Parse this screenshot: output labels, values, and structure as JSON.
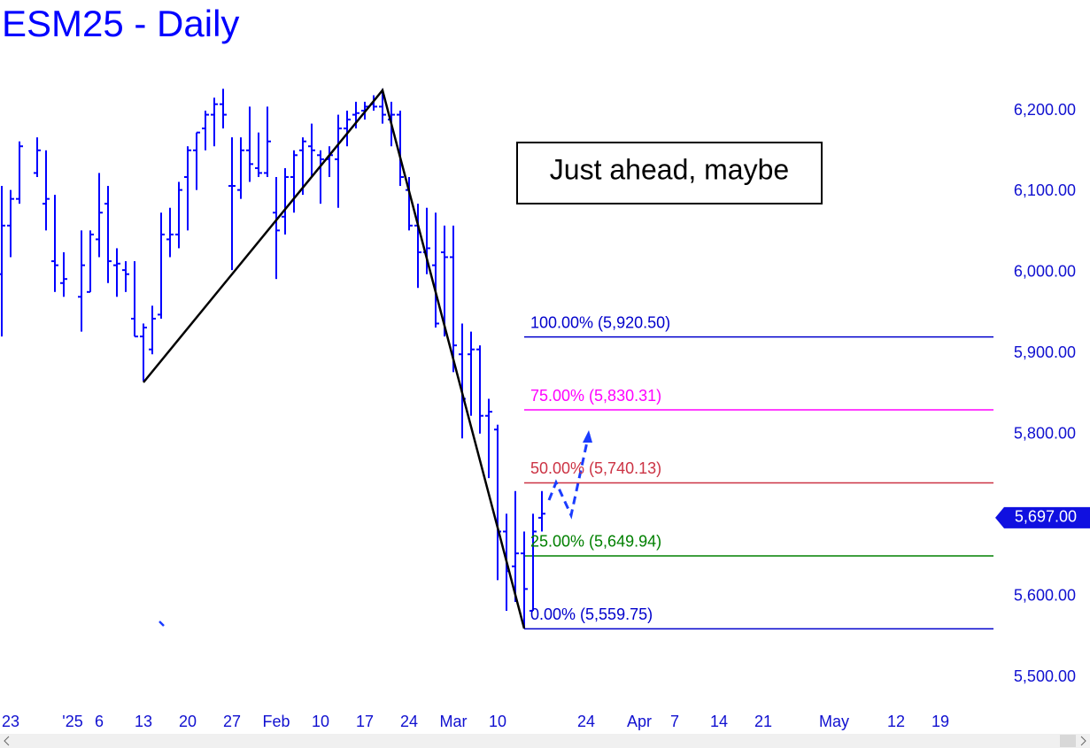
{
  "chart_data": {
    "type": "ohlc",
    "title": "ESM25 - Daily",
    "color": "#0000ff",
    "x": [
      0,
      1,
      2,
      4,
      5,
      6,
      7,
      9,
      10,
      11,
      12,
      13,
      14,
      15,
      16,
      17,
      18,
      19,
      20,
      21,
      22,
      23,
      24,
      25,
      26,
      27,
      28,
      29,
      30,
      31,
      32,
      33,
      34,
      35,
      36,
      37,
      38,
      39,
      40,
      41,
      42,
      43,
      44,
      45,
      46,
      47,
      48,
      49,
      50,
      51,
      52,
      53,
      54,
      55,
      56,
      57,
      58,
      59,
      60,
      61
    ],
    "open": [
      5998,
      6058,
      6091,
      6123,
      6085,
      6014,
      5987,
      5970,
      5976,
      6041,
      6085,
      6009,
      6003,
      5943,
      5921,
      5905,
      5948,
      6041,
      6047,
      6118,
      6151,
      6178,
      6195,
      6208,
      6107,
      6102,
      6151,
      6129,
      6123,
      6074,
      6069,
      6118,
      6151,
      6156,
      6145,
      6140,
      6140,
      6178,
      6195,
      6200,
      6208,
      6205,
      6189,
      6195,
      6102,
      6058,
      6025,
      6009,
      6025,
      6019,
      5899,
      5899,
      5905,
      5823,
      5806,
      5680,
      5637,
      5653,
      5582,
      5697
    ],
    "high": [
      6107,
      6102,
      6162,
      6167,
      6151,
      6096,
      6025,
      6052,
      6052,
      6123,
      6107,
      6030,
      6014,
      6014,
      5937,
      5959,
      6074,
      6080,
      6112,
      6156,
      6173,
      6200,
      6216,
      6227,
      6167,
      6167,
      6205,
      6173,
      6205,
      6118,
      6129,
      6151,
      6167,
      6184,
      6151,
      6156,
      6195,
      6200,
      6211,
      6211,
      6219,
      6227,
      6211,
      6200,
      6118,
      6085,
      6080,
      6074,
      6058,
      6058,
      5937,
      5927,
      5910,
      5844,
      5812,
      5702,
      5730,
      5680,
      5702,
      5730
    ],
    "low": [
      5921,
      6019,
      6085,
      6118,
      6052,
      5976,
      5970,
      5927,
      5976,
      6019,
      5987,
      5970,
      5976,
      5921,
      5866,
      5899,
      5943,
      6019,
      6030,
      6052,
      6102,
      6151,
      6156,
      6178,
      6003,
      6091,
      6112,
      6118,
      6118,
      5992,
      6047,
      6074,
      6096,
      6118,
      6085,
      6118,
      6080,
      6156,
      6178,
      6189,
      6200,
      6184,
      6156,
      6107,
      6052,
      5981,
      5998,
      5932,
      5921,
      5877,
      5795,
      5823,
      5801,
      5746,
      5620,
      5582,
      5593,
      5560,
      5582,
      5680
    ],
    "close": [
      6058,
      6091,
      6156,
      6151,
      6091,
      6009,
      5992,
      6009,
      6047,
      6074,
      6014,
      6011,
      5998,
      5921,
      5932,
      5943,
      6047,
      6047,
      6102,
      6151,
      6173,
      6195,
      6208,
      6195,
      6107,
      6151,
      6134,
      6123,
      6162,
      6052,
      6118,
      6145,
      6162,
      6151,
      6140,
      6145,
      6178,
      6189,
      6197,
      6205,
      6205,
      6195,
      6195,
      6118,
      6058,
      6025,
      6030,
      5937,
      6019,
      5910,
      5844,
      5905,
      5823,
      5828,
      5680,
      5631,
      5653,
      5609,
      5680,
      5702
    ],
    "xlim": [
      -0.2,
      122.9
    ],
    "xticks": [
      {
        "value": 1,
        "label": "23"
      },
      {
        "value": 8,
        "label": "'25"
      },
      {
        "value": 11,
        "label": "6"
      },
      {
        "value": 16,
        "label": "13"
      },
      {
        "value": 21,
        "label": "20"
      },
      {
        "value": 26,
        "label": "27"
      },
      {
        "value": 31,
        "label": "Feb"
      },
      {
        "value": 36,
        "label": "10"
      },
      {
        "value": 41,
        "label": "17"
      },
      {
        "value": 46,
        "label": "24"
      },
      {
        "value": 51,
        "label": "Mar"
      },
      {
        "value": 56,
        "label": "10"
      },
      {
        "value": 66,
        "label": "24"
      },
      {
        "value": 72,
        "label": "Apr"
      },
      {
        "value": 76,
        "label": "7"
      },
      {
        "value": 81,
        "label": "14"
      },
      {
        "value": 86,
        "label": "21"
      },
      {
        "value": 94,
        "label": "May"
      },
      {
        "value": 101,
        "label": "12"
      },
      {
        "value": 106,
        "label": "19"
      }
    ],
    "ylim": [
      5472.7,
      6271.1
    ],
    "yticks": [
      {
        "value": 5500,
        "label": "5,500.00"
      },
      {
        "value": 5600,
        "label": "5,600.00"
      },
      {
        "value": 5700,
        "label": "5,700.00"
      },
      {
        "value": 5800,
        "label": "5,800.00"
      },
      {
        "value": 5900,
        "label": "5,900.00"
      },
      {
        "value": 6000,
        "label": "6,000.00"
      },
      {
        "value": 6100,
        "label": "6,100.00"
      },
      {
        "value": 6200,
        "label": "6,200.00"
      }
    ],
    "hidden_ytick_note": null,
    "levels": [
      {
        "label": "100.00% (5,920.50)",
        "value": 5920.5,
        "color": "#0000cc"
      },
      {
        "label": "75.00% (5,830.31)",
        "value": 5830.31,
        "color": "#ff00ff"
      },
      {
        "label": "50.00% (5,740.13)",
        "value": 5740.13,
        "color": "#cc3344"
      },
      {
        "label": "25.00% (5,649.94)",
        "value": 5649.94,
        "color": "#008000"
      },
      {
        "label": "0.00% (5,559.75)",
        "value": 5559.75,
        "color": "#0000cc"
      }
    ],
    "last_price": {
      "value": 5697,
      "label": "5,697.00"
    },
    "annotation": "Just ahead, maybe"
  }
}
